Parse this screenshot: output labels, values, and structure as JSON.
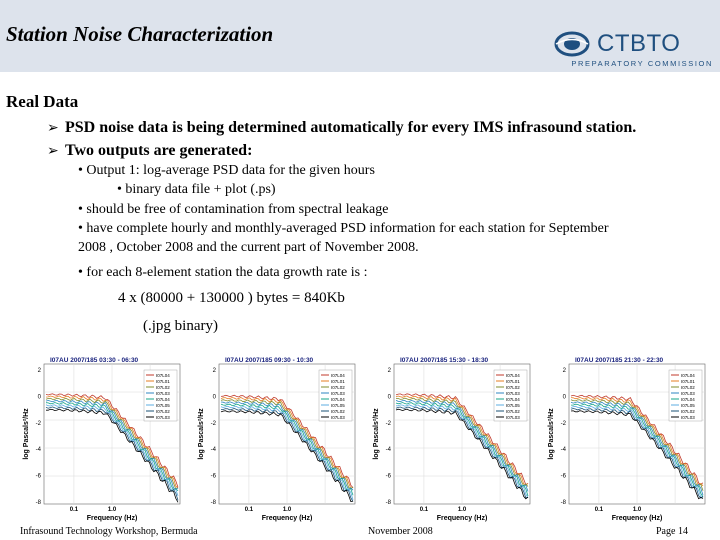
{
  "header": {
    "title": "Station Noise Characterization",
    "logo_name": "CTBTO",
    "logo_sub": "PREPARATORY COMMISSION",
    "logo_icon": "ctbto-globe-icon"
  },
  "section_title": "Real Data",
  "bullets_l1": [
    "PSD noise data is being determined automatically for every IMS infrasound station.",
    "Two outputs are generated:"
  ],
  "bullets_l2": {
    "output1": "• Output 1:  log-average PSD data for the given hours",
    "binary": "• binary data file + plot (.ps)",
    "free": "• should be free of contamination from spectral leakage",
    "complete_1": "• have complete hourly and monthly-averaged PSD information for each station for September",
    "complete_2": "2008 , October 2008 and the current part of November 2008.",
    "growth": "• for each 8-element station the data growth rate is :"
  },
  "formula": {
    "line1": "4 x (80000   +   130000 ) bytes =  840Kb",
    "line2": "(.jpg              binary)"
  },
  "plots": [
    {
      "title": "I07AU 2007/185 03:30 - 06:30"
    },
    {
      "title": "I07AU 2007/185 09:30 - 10:30"
    },
    {
      "title": "I07AU 2007/185 15:30 - 18:30"
    },
    {
      "title": "I07AU 2007/185 21:30 - 22:30"
    }
  ],
  "plot_common": {
    "ylabel": "log Pascals²/Hz",
    "xlabel": "Frequency (Hz)",
    "xtick_1": "0.1",
    "xtick_2": "1.0",
    "yticks": [
      "2",
      "0",
      "-2",
      "-4",
      "-6",
      "-8"
    ],
    "legend": [
      "I07L04",
      "I07L01",
      "I07L02",
      "I07L03",
      "I07L04",
      "I07L05",
      "I07L02",
      "I07L03"
    ],
    "colors": [
      "#c0392b",
      "#e67e22",
      "#7f8c2d",
      "#2e86c1",
      "#17a589",
      "#5dade2",
      "#1a5276",
      "#000000"
    ]
  },
  "footer": {
    "left": "Infrasound Technology Workshop, Bermuda",
    "center": "November 2008",
    "right": "Page 14"
  }
}
